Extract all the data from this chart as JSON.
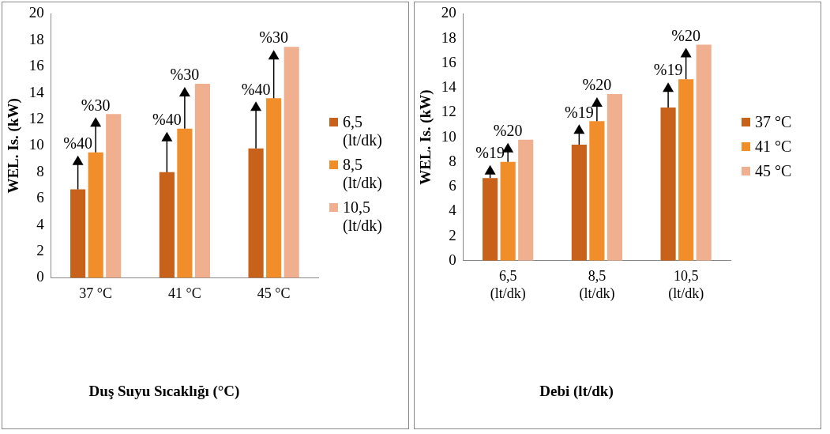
{
  "chart_data": [
    {
      "type": "bar",
      "xlabel": "Duş Suyu Sıcaklığı (°C)",
      "ylabel": "WEL. Is. (kW)",
      "categories": [
        "37 °C",
        "41 °C",
        "45 °C"
      ],
      "series": [
        {
          "name": "6,5 (lt/dk)",
          "color": "#c8621a",
          "values": [
            6.7,
            8.0,
            9.8
          ]
        },
        {
          "name": "8,5 (lt/dk)",
          "color": "#f28e2a",
          "values": [
            9.5,
            11.3,
            13.6
          ]
        },
        {
          "name": "10,5 (lt/dk)",
          "color": "#f0b090",
          "values": [
            12.4,
            14.7,
            17.5
          ]
        }
      ],
      "ylim": [
        0,
        20
      ],
      "yticks": [
        0,
        2,
        4,
        6,
        8,
        10,
        12,
        14,
        16,
        18,
        20
      ],
      "grid": false,
      "legend": "right",
      "annotations": [
        "%40",
        "%30",
        "%40",
        "%30",
        "%40",
        "%30"
      ]
    },
    {
      "type": "bar",
      "xlabel": "Debi (lt/dk)",
      "ylabel": "WEL. Is. (kW)",
      "categories": [
        "6,5 (lt/dk)",
        "8,5 (lt/dk)",
        "10,5 (lt/dk)"
      ],
      "series": [
        {
          "name": "37 °C",
          "color": "#c8621a",
          "values": [
            6.7,
            9.4,
            12.4
          ]
        },
        {
          "name": "41 °C",
          "color": "#f28e2a",
          "values": [
            8.0,
            11.3,
            14.7
          ]
        },
        {
          "name": "45 °C",
          "color": "#f0b090",
          "values": [
            9.8,
            13.5,
            17.5
          ]
        }
      ],
      "ylim": [
        0,
        20
      ],
      "yticks": [
        0,
        2,
        4,
        6,
        8,
        10,
        12,
        14,
        16,
        18,
        20
      ],
      "grid": false,
      "legend": "right",
      "annotations": [
        "%19",
        "%20",
        "%19",
        "%20",
        "%19",
        "%20"
      ]
    }
  ]
}
